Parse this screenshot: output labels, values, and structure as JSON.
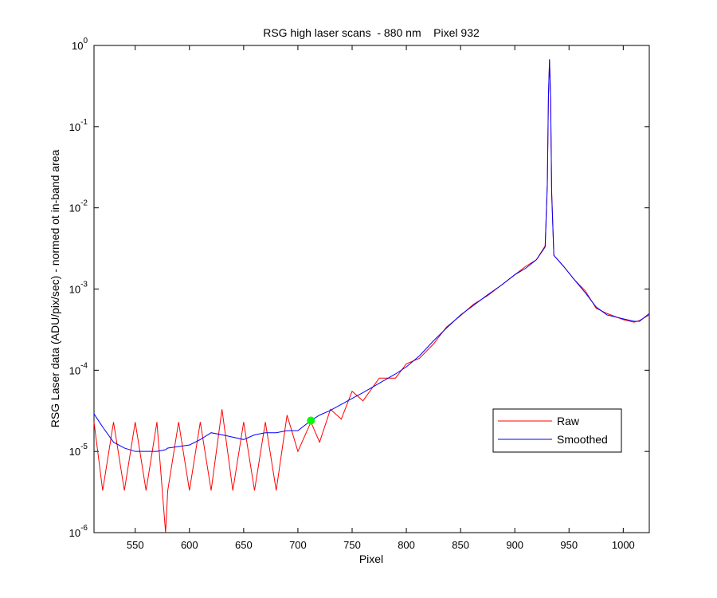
{
  "chart_data": {
    "type": "line",
    "title": "RSG high laser scans  - 880 nm    Pixel 932",
    "xlabel": "Pixel",
    "ylabel": "RSG Laser data (ADU/pix/sec) - normed ot in-band area",
    "log_y": true,
    "legend": "lower right",
    "xlim": [
      512,
      1024
    ],
    "xticks": [
      550,
      600,
      650,
      700,
      750,
      800,
      850,
      900,
      950,
      1000
    ],
    "ylim": [
      1e-06,
      1
    ],
    "yticks": [
      {
        "value": 1e-06,
        "label": "10^-6"
      },
      {
        "value": 1e-05,
        "label": "10^-5"
      },
      {
        "value": 0.0001,
        "label": "10^-4"
      },
      {
        "value": 0.001,
        "label": "10^-3"
      },
      {
        "value": 0.01,
        "label": "10^-2"
      },
      {
        "value": 0.1,
        "label": "10^-1"
      },
      {
        "value": 1,
        "label": "10^0"
      }
    ],
    "x": [
      512,
      520,
      530,
      540,
      550,
      560,
      570,
      578,
      580,
      590,
      600,
      610,
      620,
      630,
      640,
      650,
      660,
      670,
      680,
      690,
      700,
      712,
      720,
      730,
      740,
      750,
      760,
      775,
      790,
      800,
      812,
      825,
      837,
      850,
      862,
      875,
      887,
      900,
      910,
      920,
      928,
      930,
      931,
      932,
      933,
      934,
      936,
      945,
      955,
      965,
      975,
      985,
      1000,
      1010,
      1015,
      1024
    ],
    "series": [
      {
        "name": "Raw",
        "color": "#ff0000",
        "values": [
          2.3e-05,
          3.3e-06,
          2.3e-05,
          3.3e-06,
          2.3e-05,
          3.3e-06,
          2.3e-05,
          1e-06,
          3.3e-06,
          2.3e-05,
          3.3e-06,
          2.3e-05,
          3.3e-06,
          3.3e-05,
          3.3e-06,
          2.3e-05,
          3.3e-06,
          2.3e-05,
          3.3e-06,
          2.8e-05,
          1e-05,
          2.3e-05,
          1.3e-05,
          3.3e-05,
          2.5e-05,
          5.5e-05,
          4.2e-05,
          8e-05,
          8e-05,
          0.00012,
          0.00014,
          0.00021,
          0.00034,
          0.00047,
          0.00065,
          0.00083,
          0.0011,
          0.0015,
          0.0019,
          0.0023,
          0.0034,
          0.02,
          0.22,
          0.68,
          0.22,
          0.016,
          0.0026,
          0.0019,
          0.0013,
          0.00095,
          0.00058,
          0.0005,
          0.00042,
          0.00039,
          0.00041,
          0.00048
        ]
      },
      {
        "name": "Smoothed",
        "color": "#0000ff",
        "values": [
          2.9e-05,
          2e-05,
          1.3e-05,
          1.1e-05,
          1e-05,
          1e-05,
          1e-05,
          1.05e-05,
          1.1e-05,
          1.15e-05,
          1.2e-05,
          1.4e-05,
          1.7e-05,
          1.6e-05,
          1.5e-05,
          1.4e-05,
          1.6e-05,
          1.7e-05,
          1.7e-05,
          1.8e-05,
          1.8e-05,
          2.4e-05,
          2.8e-05,
          3.2e-05,
          3.8e-05,
          4.5e-05,
          5.3e-05,
          6.9e-05,
          9e-05,
          0.00011,
          0.00015,
          0.00023,
          0.00033,
          0.00048,
          0.00063,
          0.00085,
          0.0011,
          0.0015,
          0.0018,
          0.0023,
          0.0033,
          0.02,
          0.24,
          0.66,
          0.24,
          0.015,
          0.0026,
          0.0019,
          0.0013,
          0.0009,
          0.0006,
          0.00048,
          0.00043,
          0.0004,
          0.0004,
          0.0005
        ]
      }
    ],
    "marker": {
      "x": 712,
      "y": 2.4e-05,
      "color": "#00ff00"
    }
  }
}
